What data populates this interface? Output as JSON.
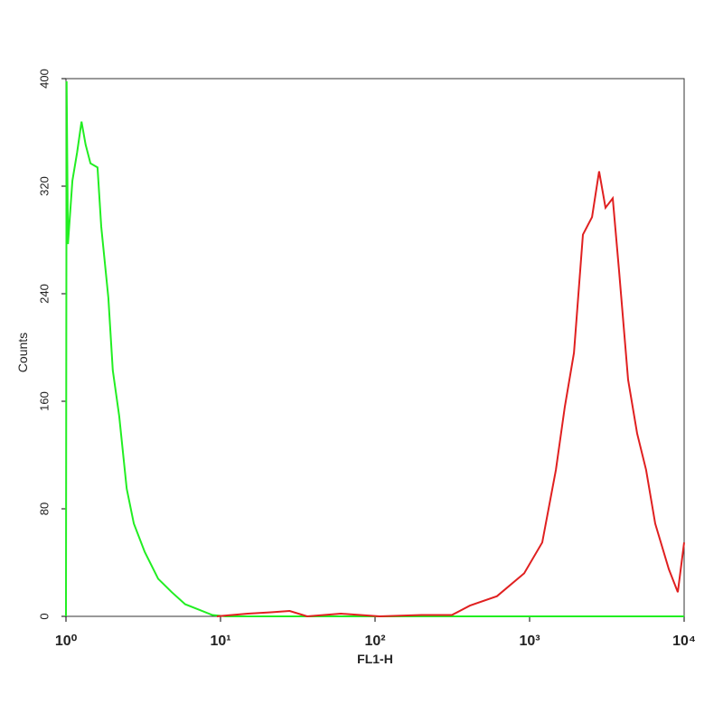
{
  "chart_data": {
    "type": "line",
    "x_label": "FL1-H",
    "y_label": "Counts",
    "x_log": true,
    "xlim": [
      1,
      10000
    ],
    "ylim": [
      0,
      400
    ],
    "xticks": [
      {
        "value": 1,
        "label": "10⁰"
      },
      {
        "value": 10,
        "label": "10¹"
      },
      {
        "value": 100,
        "label": "10²"
      },
      {
        "value": 1000,
        "label": "10³"
      },
      {
        "value": 10000,
        "label": "10⁴"
      }
    ],
    "yticks": [
      0,
      80,
      160,
      240,
      320,
      400
    ],
    "series": [
      {
        "color": "#22ee22",
        "x": [
          1,
          1.01,
          1.03,
          1.1,
          1.18,
          1.26,
          1.34,
          1.44,
          1.6,
          1.69,
          1.88,
          2.01,
          2.21,
          2.47,
          2.75,
          3.23,
          3.95,
          4.83,
          5.91,
          7.24,
          8.86,
          10.8,
          20,
          50,
          200,
          1000,
          3000,
          10000
        ],
        "values": [
          0,
          398,
          277,
          324,
          345,
          368,
          351,
          337,
          334,
          290,
          237,
          183,
          149,
          95,
          69,
          48,
          28,
          18,
          9,
          5,
          1,
          0,
          0,
          0,
          0,
          0,
          0,
          0
        ]
      },
      {
        "color": "#e02020",
        "x": [
          9.48,
          15,
          21.2,
          28,
          36.4,
          60,
          107,
          200,
          314,
          411,
          615,
          922,
          1207,
          1479,
          1691,
          1936,
          2213,
          2535,
          2818,
          3097,
          3450,
          3793,
          4339,
          4966,
          5675,
          6501,
          7962,
          9099,
          10000
        ],
        "values": [
          0,
          2,
          3,
          4,
          0,
          2,
          0,
          1,
          1,
          8,
          15,
          32,
          55,
          109,
          156,
          196,
          284,
          297,
          331,
          304,
          311,
          257,
          176,
          136,
          109,
          69,
          35,
          18,
          55
        ]
      }
    ]
  }
}
